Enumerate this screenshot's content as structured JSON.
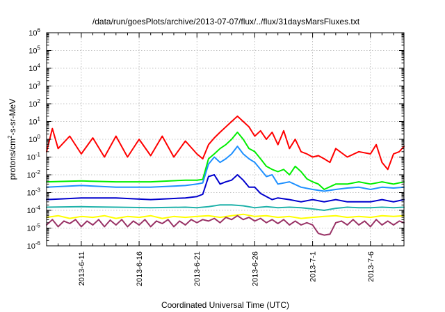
{
  "chart_data": {
    "type": "line",
    "title": "/data/run/goesPlots/archive/2013-07-07/flux/../flux/31daysMarsFluxes.txt",
    "xlabel": "Coordinated Universal Time (UTC)",
    "ylabel_parts": [
      "protons/cm",
      "2",
      "-s-sr-MeV"
    ],
    "yscale": "log",
    "ylim_exp": [
      -6,
      6
    ],
    "y_tick_exponents": [
      -6,
      -5,
      -4,
      -3,
      -2,
      -1,
      0,
      1,
      2,
      3,
      4,
      5,
      6
    ],
    "y_tick_base": "10",
    "xlim": [
      -3.0,
      27.9
    ],
    "x_tick_labels": [
      "2013-6-11",
      "2013-6-16",
      "2013-6-21",
      "2013-6-26",
      "2013-7-1",
      "2013-7-6"
    ],
    "x_tick_days": [
      0,
      5,
      10,
      15,
      20,
      25
    ],
    "x_day_zero": "2013-6-11",
    "grid": true,
    "series": [
      {
        "color": "#ff0000",
        "x": [
          -3.0,
          -2.5,
          -2.0,
          -1.0,
          0.0,
          1.0,
          2.0,
          3.0,
          4.0,
          5.0,
          6.0,
          7.0,
          8.0,
          9.0,
          10.0,
          10.5,
          11.0,
          11.5,
          12.0,
          12.5,
          13.0,
          13.5,
          14.0,
          14.5,
          15.0,
          15.5,
          16.0,
          16.5,
          17.0,
          17.5,
          18.0,
          18.5,
          19.0,
          19.5,
          20.0,
          20.5,
          21.0,
          21.5,
          22.0,
          23.0,
          24.0,
          25.0,
          25.5,
          26.0,
          26.5,
          27.0,
          27.5,
          27.9
        ],
        "y": [
          0.2,
          4.0,
          0.3,
          1.5,
          0.15,
          1.2,
          0.1,
          1.5,
          0.1,
          1.0,
          0.12,
          1.5,
          0.1,
          0.8,
          0.15,
          0.08,
          0.5,
          1.2,
          2.5,
          5.0,
          10.0,
          20.0,
          10.0,
          5.0,
          1.5,
          3.0,
          1.0,
          2.5,
          0.5,
          3.0,
          0.3,
          1.0,
          0.2,
          0.15,
          0.1,
          0.12,
          0.08,
          0.05,
          0.3,
          0.1,
          0.2,
          0.15,
          0.5,
          0.05,
          0.02,
          0.15,
          0.2,
          0.4
        ]
      },
      {
        "color": "#00ee00",
        "x": [
          -3.0,
          0.0,
          3.0,
          6.0,
          9.0,
          10.0,
          10.5,
          11.0,
          11.5,
          12.0,
          12.5,
          13.0,
          13.5,
          14.0,
          14.5,
          15.0,
          15.5,
          16.0,
          16.5,
          17.0,
          17.5,
          18.0,
          18.5,
          19.0,
          19.5,
          20.0,
          20.5,
          21.0,
          22.0,
          23.0,
          24.0,
          25.0,
          26.0,
          27.0,
          27.9
        ],
        "y": [
          0.004,
          0.0045,
          0.004,
          0.004,
          0.005,
          0.005,
          0.0055,
          0.08,
          0.15,
          0.3,
          0.5,
          1.0,
          2.5,
          1.0,
          0.3,
          0.2,
          0.08,
          0.03,
          0.02,
          0.015,
          0.02,
          0.01,
          0.03,
          0.015,
          0.006,
          0.004,
          0.003,
          0.0015,
          0.003,
          0.003,
          0.004,
          0.003,
          0.004,
          0.003,
          0.004
        ]
      },
      {
        "color": "#1e90ff",
        "x": [
          -3.0,
          0.0,
          3.0,
          6.0,
          9.0,
          10.0,
          10.5,
          11.0,
          11.5,
          12.0,
          12.5,
          13.0,
          13.5,
          14.0,
          14.5,
          15.0,
          15.5,
          16.0,
          16.5,
          17.0,
          18.0,
          19.0,
          20.0,
          21.0,
          22.0,
          23.0,
          24.0,
          25.0,
          26.0,
          27.0,
          27.9
        ],
        "y": [
          0.002,
          0.0025,
          0.002,
          0.002,
          0.0025,
          0.003,
          0.0035,
          0.04,
          0.1,
          0.05,
          0.08,
          0.15,
          0.4,
          0.15,
          0.08,
          0.05,
          0.02,
          0.008,
          0.01,
          0.003,
          0.004,
          0.002,
          0.0015,
          0.0012,
          0.0015,
          0.0018,
          0.002,
          0.0015,
          0.002,
          0.0018,
          0.002
        ]
      },
      {
        "color": "#0000cd",
        "x": [
          -3.0,
          0.0,
          3.0,
          6.0,
          9.0,
          10.0,
          10.5,
          11.0,
          11.5,
          12.0,
          12.5,
          13.0,
          13.5,
          14.0,
          14.5,
          15.0,
          15.5,
          16.0,
          16.5,
          17.0,
          18.0,
          19.0,
          20.0,
          21.0,
          22.0,
          23.0,
          24.0,
          25.0,
          26.0,
          27.0,
          27.9
        ],
        "y": [
          0.0004,
          0.0005,
          0.0005,
          0.0004,
          0.0005,
          0.0006,
          0.0008,
          0.008,
          0.01,
          0.003,
          0.004,
          0.005,
          0.01,
          0.005,
          0.002,
          0.002,
          0.0009,
          0.0006,
          0.0004,
          0.0005,
          0.0004,
          0.0003,
          0.0004,
          0.0003,
          0.0004,
          0.0003,
          0.0003,
          0.0003,
          0.0004,
          0.0003,
          0.0004
        ]
      },
      {
        "color": "#20b2aa",
        "x": [
          -3.0,
          0.0,
          3.0,
          6.0,
          9.0,
          10.0,
          11.0,
          12.0,
          13.0,
          14.0,
          15.0,
          16.0,
          17.0,
          18.0,
          19.0,
          20.0,
          21.0,
          22.0,
          23.0,
          24.0,
          25.0,
          26.0,
          27.0,
          27.9
        ],
        "y": [
          0.00015,
          0.00016,
          0.00015,
          0.00014,
          0.00015,
          0.00014,
          0.00016,
          0.0002,
          0.0002,
          0.00018,
          0.00014,
          0.00016,
          0.00014,
          0.00015,
          0.00014,
          0.00012,
          0.0001,
          0.00013,
          0.00015,
          0.00014,
          0.00014,
          0.00015,
          0.00014,
          0.00015
        ]
      },
      {
        "color": "#ffff00",
        "x": [
          -3.0,
          -2.0,
          -1.0,
          0.0,
          1.0,
          2.0,
          3.0,
          4.0,
          5.0,
          6.0,
          7.0,
          8.0,
          9.0,
          10.0,
          11.0,
          12.0,
          13.0,
          14.0,
          15.0,
          16.0,
          17.0,
          18.0,
          19.0,
          20.0,
          21.0,
          22.0,
          23.0,
          24.0,
          25.0,
          26.0,
          27.0,
          27.9
        ],
        "y": [
          4e-05,
          5e-05,
          3.5e-05,
          4.5e-05,
          4e-05,
          5e-05,
          3.5e-05,
          4.5e-05,
          4e-05,
          5e-05,
          3.5e-05,
          4.5e-05,
          4e-05,
          4.5e-05,
          5e-05,
          4e-05,
          5e-05,
          6e-05,
          4.5e-05,
          5e-05,
          4e-05,
          4.5e-05,
          3.5e-05,
          4e-05,
          4.5e-05,
          5e-05,
          4e-05,
          4.5e-05,
          4e-05,
          5e-05,
          4.5e-05,
          5e-05
        ]
      },
      {
        "color": "#993366",
        "x": [
          -3.0,
          -2.5,
          -2.0,
          -1.5,
          -1.0,
          -0.5,
          0.0,
          0.5,
          1.0,
          1.5,
          2.0,
          2.5,
          3.0,
          3.5,
          4.0,
          4.5,
          5.0,
          5.5,
          6.0,
          6.5,
          7.0,
          7.5,
          8.0,
          8.5,
          9.0,
          9.5,
          10.0,
          10.5,
          11.0,
          11.5,
          12.0,
          12.5,
          13.0,
          13.5,
          14.0,
          14.5,
          15.0,
          15.5,
          16.0,
          16.5,
          17.0,
          17.5,
          18.0,
          18.5,
          19.0,
          19.5,
          20.0,
          20.5,
          21.0,
          21.5,
          22.0,
          22.5,
          23.0,
          23.5,
          24.0,
          24.5,
          25.0,
          25.5,
          26.0,
          26.5,
          27.0,
          27.5,
          27.9
        ],
        "y": [
          1.5e-05,
          3e-05,
          1.2e-05,
          2.5e-05,
          1.8e-05,
          3e-05,
          1.2e-05,
          2.5e-05,
          1.5e-05,
          3e-05,
          1.2e-05,
          2.8e-05,
          1.5e-05,
          3e-05,
          1.2e-05,
          2.5e-05,
          1.5e-05,
          3e-05,
          1.2e-05,
          2.5e-05,
          1.8e-05,
          3e-05,
          1.2e-05,
          2.5e-05,
          1.5e-05,
          3e-05,
          2e-05,
          3e-05,
          2.5e-05,
          3.5e-05,
          2e-05,
          4e-05,
          3e-05,
          5e-05,
          3e-05,
          4e-05,
          2.5e-05,
          3.5e-05,
          2e-05,
          3e-05,
          1.8e-05,
          3e-05,
          1.5e-05,
          2.5e-05,
          1.5e-05,
          2e-05,
          1.5e-05,
          5e-06,
          4e-06,
          4.5e-06,
          2e-05,
          2.5e-05,
          1.5e-05,
          3e-05,
          1.5e-05,
          2.5e-05,
          1.2e-05,
          3e-05,
          1.5e-05,
          2.5e-05,
          1.5e-05,
          2.5e-05,
          2e-05
        ]
      }
    ]
  }
}
